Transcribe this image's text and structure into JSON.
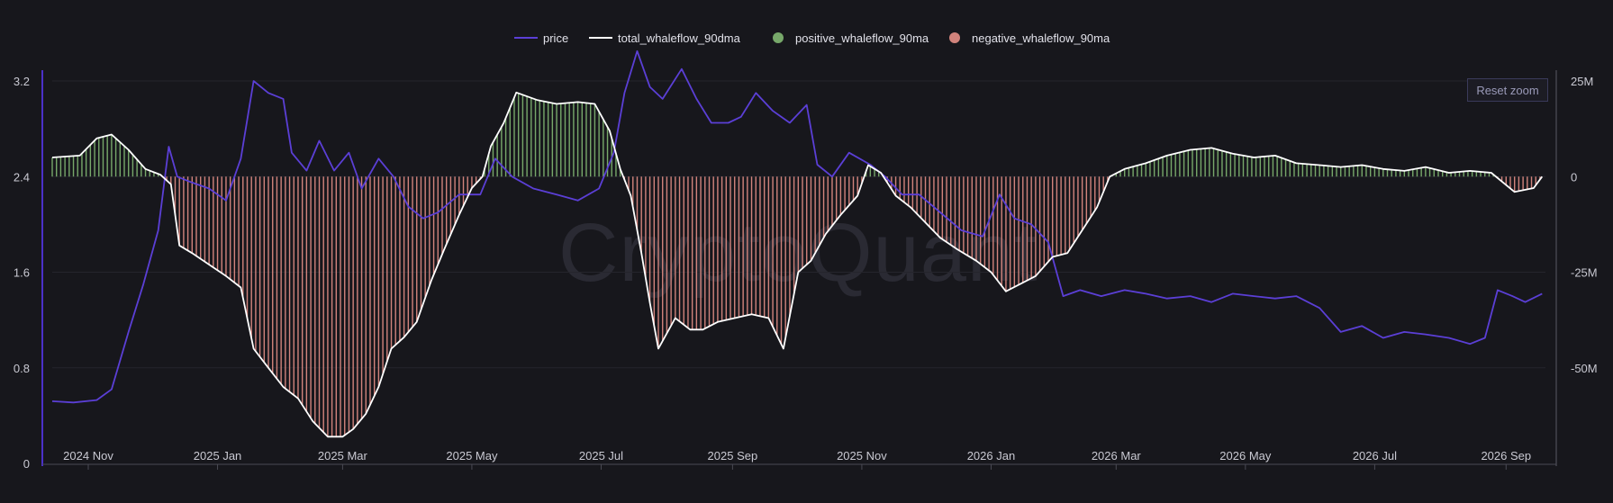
{
  "watermark": "CryptoQuant",
  "reset_zoom_label": "Reset zoom",
  "chart_data": {
    "type": "line",
    "legend": [
      {
        "name": "price",
        "color": "#5b3fd6",
        "marker": "line"
      },
      {
        "name": "total_whaleflow_90dma",
        "color": "#ffffff",
        "marker": "line"
      },
      {
        "name": "positive_whaleflow_90ma",
        "color": "#77a86a",
        "marker": "dot"
      },
      {
        "name": "negative_whaleflow_90ma",
        "color": "#d1837c",
        "marker": "dot"
      }
    ],
    "legend_position": "top-center",
    "x_ticks": [
      "2024 Nov",
      "2025 Jan",
      "2025 Mar",
      "2025 May",
      "2025 Jul",
      "2025 Sep",
      "2025 Nov",
      "2026 Jan",
      "2026 Mar",
      "2026 May",
      "2026 Jul",
      "2026 Sep"
    ],
    "x_range": [
      "2024-10-15",
      "2026-09-20"
    ],
    "y_left": {
      "ticks": [
        "0",
        "0.8",
        "1.6",
        "2.4",
        "3.2"
      ],
      "range": [
        0,
        3.2
      ]
    },
    "y_right": {
      "ticks": [
        "25M",
        "0",
        "-25M",
        "-50M"
      ],
      "range": [
        -75000000,
        25000000
      ]
    },
    "grid": true,
    "price_series": {
      "name": "price",
      "points": [
        [
          "2024-10-15",
          0.52
        ],
        [
          "2024-10-25",
          0.51
        ],
        [
          "2024-11-05",
          0.53
        ],
        [
          "2024-11-12",
          0.62
        ],
        [
          "2024-11-20",
          1.1
        ],
        [
          "2024-11-27",
          1.5
        ],
        [
          "2024-12-04",
          1.95
        ],
        [
          "2024-12-09",
          2.65
        ],
        [
          "2024-12-13",
          2.4
        ],
        [
          "2024-12-20",
          2.35
        ],
        [
          "2024-12-28",
          2.3
        ],
        [
          "2025-01-05",
          2.2
        ],
        [
          "2025-01-12",
          2.55
        ],
        [
          "2025-01-18",
          3.2
        ],
        [
          "2025-01-25",
          3.1
        ],
        [
          "2025-02-01",
          3.05
        ],
        [
          "2025-02-05",
          2.6
        ],
        [
          "2025-02-12",
          2.45
        ],
        [
          "2025-02-18",
          2.7
        ],
        [
          "2025-02-25",
          2.45
        ],
        [
          "2025-03-04",
          2.6
        ],
        [
          "2025-03-10",
          2.3
        ],
        [
          "2025-03-18",
          2.55
        ],
        [
          "2025-03-25",
          2.4
        ],
        [
          "2025-04-01",
          2.15
        ],
        [
          "2025-04-08",
          2.05
        ],
        [
          "2025-04-15",
          2.1
        ],
        [
          "2025-04-25",
          2.25
        ],
        [
          "2025-05-05",
          2.25
        ],
        [
          "2025-05-12",
          2.55
        ],
        [
          "2025-05-20",
          2.4
        ],
        [
          "2025-05-30",
          2.3
        ],
        [
          "2025-06-10",
          2.25
        ],
        [
          "2025-06-20",
          2.2
        ],
        [
          "2025-06-30",
          2.3
        ],
        [
          "2025-07-07",
          2.6
        ],
        [
          "2025-07-12",
          3.1
        ],
        [
          "2025-07-18",
          3.45
        ],
        [
          "2025-07-24",
          3.15
        ],
        [
          "2025-07-30",
          3.05
        ],
        [
          "2025-08-08",
          3.3
        ],
        [
          "2025-08-15",
          3.05
        ],
        [
          "2025-08-22",
          2.85
        ],
        [
          "2025-08-30",
          2.85
        ],
        [
          "2025-09-05",
          2.9
        ],
        [
          "2025-09-12",
          3.1
        ],
        [
          "2025-09-20",
          2.95
        ],
        [
          "2025-09-28",
          2.85
        ],
        [
          "2025-10-06",
          3.0
        ],
        [
          "2025-10-11",
          2.5
        ],
        [
          "2025-10-18",
          2.4
        ],
        [
          "2025-10-26",
          2.6
        ],
        [
          "2025-11-05",
          2.5
        ],
        [
          "2025-11-12",
          2.4
        ],
        [
          "2025-11-20",
          2.25
        ],
        [
          "2025-11-28",
          2.25
        ],
        [
          "2025-12-08",
          2.1
        ],
        [
          "2025-12-18",
          1.95
        ],
        [
          "2025-12-28",
          1.9
        ],
        [
          "2026-01-05",
          2.25
        ],
        [
          "2026-01-12",
          2.05
        ],
        [
          "2026-01-20",
          2.0
        ],
        [
          "2026-01-28",
          1.85
        ],
        [
          "2026-02-04",
          1.4
        ],
        [
          "2026-02-12",
          1.45
        ],
        [
          "2026-02-22",
          1.4
        ],
        [
          "2026-03-05",
          1.45
        ],
        [
          "2026-03-15",
          1.42
        ],
        [
          "2026-03-25",
          1.38
        ],
        [
          "2026-04-05",
          1.4
        ],
        [
          "2026-04-15",
          1.35
        ],
        [
          "2026-04-25",
          1.42
        ],
        [
          "2026-05-05",
          1.4
        ],
        [
          "2026-05-15",
          1.38
        ],
        [
          "2026-05-25",
          1.4
        ],
        [
          "2026-06-05",
          1.3
        ],
        [
          "2026-06-15",
          1.1
        ],
        [
          "2026-06-25",
          1.15
        ],
        [
          "2026-07-05",
          1.05
        ],
        [
          "2026-07-15",
          1.1
        ],
        [
          "2026-07-25",
          1.08
        ],
        [
          "2026-08-05",
          1.05
        ],
        [
          "2026-08-15",
          1.0
        ],
        [
          "2026-08-22",
          1.05
        ],
        [
          "2026-08-28",
          1.45
        ],
        [
          "2026-09-04",
          1.4
        ],
        [
          "2026-09-10",
          1.35
        ],
        [
          "2026-09-18",
          1.42
        ]
      ]
    },
    "whaleflow_series": {
      "name": "total_whaleflow_90dma",
      "points": [
        [
          "2024-10-15",
          5000000
        ],
        [
          "2024-10-28",
          5500000
        ],
        [
          "2024-11-05",
          10000000
        ],
        [
          "2024-11-12",
          11000000
        ],
        [
          "2024-11-20",
          7000000
        ],
        [
          "2024-11-28",
          2000000
        ],
        [
          "2024-12-05",
          500000
        ],
        [
          "2024-12-10",
          -2000000
        ],
        [
          "2024-12-14",
          -18000000
        ],
        [
          "2024-12-20",
          -20000000
        ],
        [
          "2024-12-28",
          -23000000
        ],
        [
          "2025-01-05",
          -26000000
        ],
        [
          "2025-01-12",
          -29000000
        ],
        [
          "2025-01-18",
          -45000000
        ],
        [
          "2025-01-25",
          -50000000
        ],
        [
          "2025-02-01",
          -55000000
        ],
        [
          "2025-02-08",
          -58000000
        ],
        [
          "2025-02-15",
          -64000000
        ],
        [
          "2025-02-22",
          -68000000
        ],
        [
          "2025-03-01",
          -68000000
        ],
        [
          "2025-03-06",
          -66000000
        ],
        [
          "2025-03-12",
          -62000000
        ],
        [
          "2025-03-18",
          -55000000
        ],
        [
          "2025-03-24",
          -45000000
        ],
        [
          "2025-03-30",
          -42000000
        ],
        [
          "2025-04-05",
          -38000000
        ],
        [
          "2025-04-12",
          -27000000
        ],
        [
          "2025-04-18",
          -19000000
        ],
        [
          "2025-04-25",
          -10000000
        ],
        [
          "2025-05-01",
          -3000000
        ],
        [
          "2025-05-06",
          0
        ],
        [
          "2025-05-10",
          8000000
        ],
        [
          "2025-05-16",
          14000000
        ],
        [
          "2025-05-22",
          22000000
        ],
        [
          "2025-06-01",
          20000000
        ],
        [
          "2025-06-10",
          19000000
        ],
        [
          "2025-06-20",
          19500000
        ],
        [
          "2025-06-28",
          19000000
        ],
        [
          "2025-07-05",
          12000000
        ],
        [
          "2025-07-10",
          2000000
        ],
        [
          "2025-07-15",
          -5000000
        ],
        [
          "2025-07-20",
          -20000000
        ],
        [
          "2025-07-24",
          -33000000
        ],
        [
          "2025-07-28",
          -45000000
        ],
        [
          "2025-08-05",
          -37000000
        ],
        [
          "2025-08-12",
          -40000000
        ],
        [
          "2025-08-18",
          -40000000
        ],
        [
          "2025-08-25",
          -38000000
        ],
        [
          "2025-09-02",
          -37000000
        ],
        [
          "2025-09-10",
          -36000000
        ],
        [
          "2025-09-18",
          -37000000
        ],
        [
          "2025-09-25",
          -45000000
        ],
        [
          "2025-10-02",
          -25000000
        ],
        [
          "2025-10-08",
          -22000000
        ],
        [
          "2025-10-15",
          -15000000
        ],
        [
          "2025-10-22",
          -10000000
        ],
        [
          "2025-10-30",
          -5000000
        ],
        [
          "2025-11-04",
          3000000
        ],
        [
          "2025-11-10",
          1000000
        ],
        [
          "2025-11-17",
          -5000000
        ],
        [
          "2025-11-24",
          -8000000
        ],
        [
          "2025-12-01",
          -12000000
        ],
        [
          "2025-12-08",
          -16000000
        ],
        [
          "2025-12-16",
          -19000000
        ],
        [
          "2025-12-25",
          -22000000
        ],
        [
          "2026-01-01",
          -25000000
        ],
        [
          "2026-01-08",
          -30000000
        ],
        [
          "2026-01-15",
          -28000000
        ],
        [
          "2026-01-22",
          -26000000
        ],
        [
          "2026-01-30",
          -21000000
        ],
        [
          "2026-02-06",
          -20000000
        ],
        [
          "2026-02-13",
          -14000000
        ],
        [
          "2026-02-20",
          -8000000
        ],
        [
          "2026-02-26",
          0
        ],
        [
          "2026-03-05",
          2000000
        ],
        [
          "2026-03-15",
          3500000
        ],
        [
          "2026-03-25",
          5500000
        ],
        [
          "2026-04-05",
          7000000
        ],
        [
          "2026-04-15",
          7500000
        ],
        [
          "2026-04-25",
          6000000
        ],
        [
          "2026-05-05",
          5000000
        ],
        [
          "2026-05-15",
          5500000
        ],
        [
          "2026-05-25",
          3500000
        ],
        [
          "2026-06-05",
          3000000
        ],
        [
          "2026-06-15",
          2500000
        ],
        [
          "2026-06-25",
          3000000
        ],
        [
          "2026-07-05",
          2000000
        ],
        [
          "2026-07-15",
          1500000
        ],
        [
          "2026-07-25",
          2500000
        ],
        [
          "2026-08-05",
          1000000
        ],
        [
          "2026-08-15",
          1500000
        ],
        [
          "2026-08-25",
          1000000
        ],
        [
          "2026-09-05",
          -4000000
        ],
        [
          "2026-09-14",
          -3000000
        ],
        [
          "2026-09-18",
          0
        ]
      ]
    }
  }
}
